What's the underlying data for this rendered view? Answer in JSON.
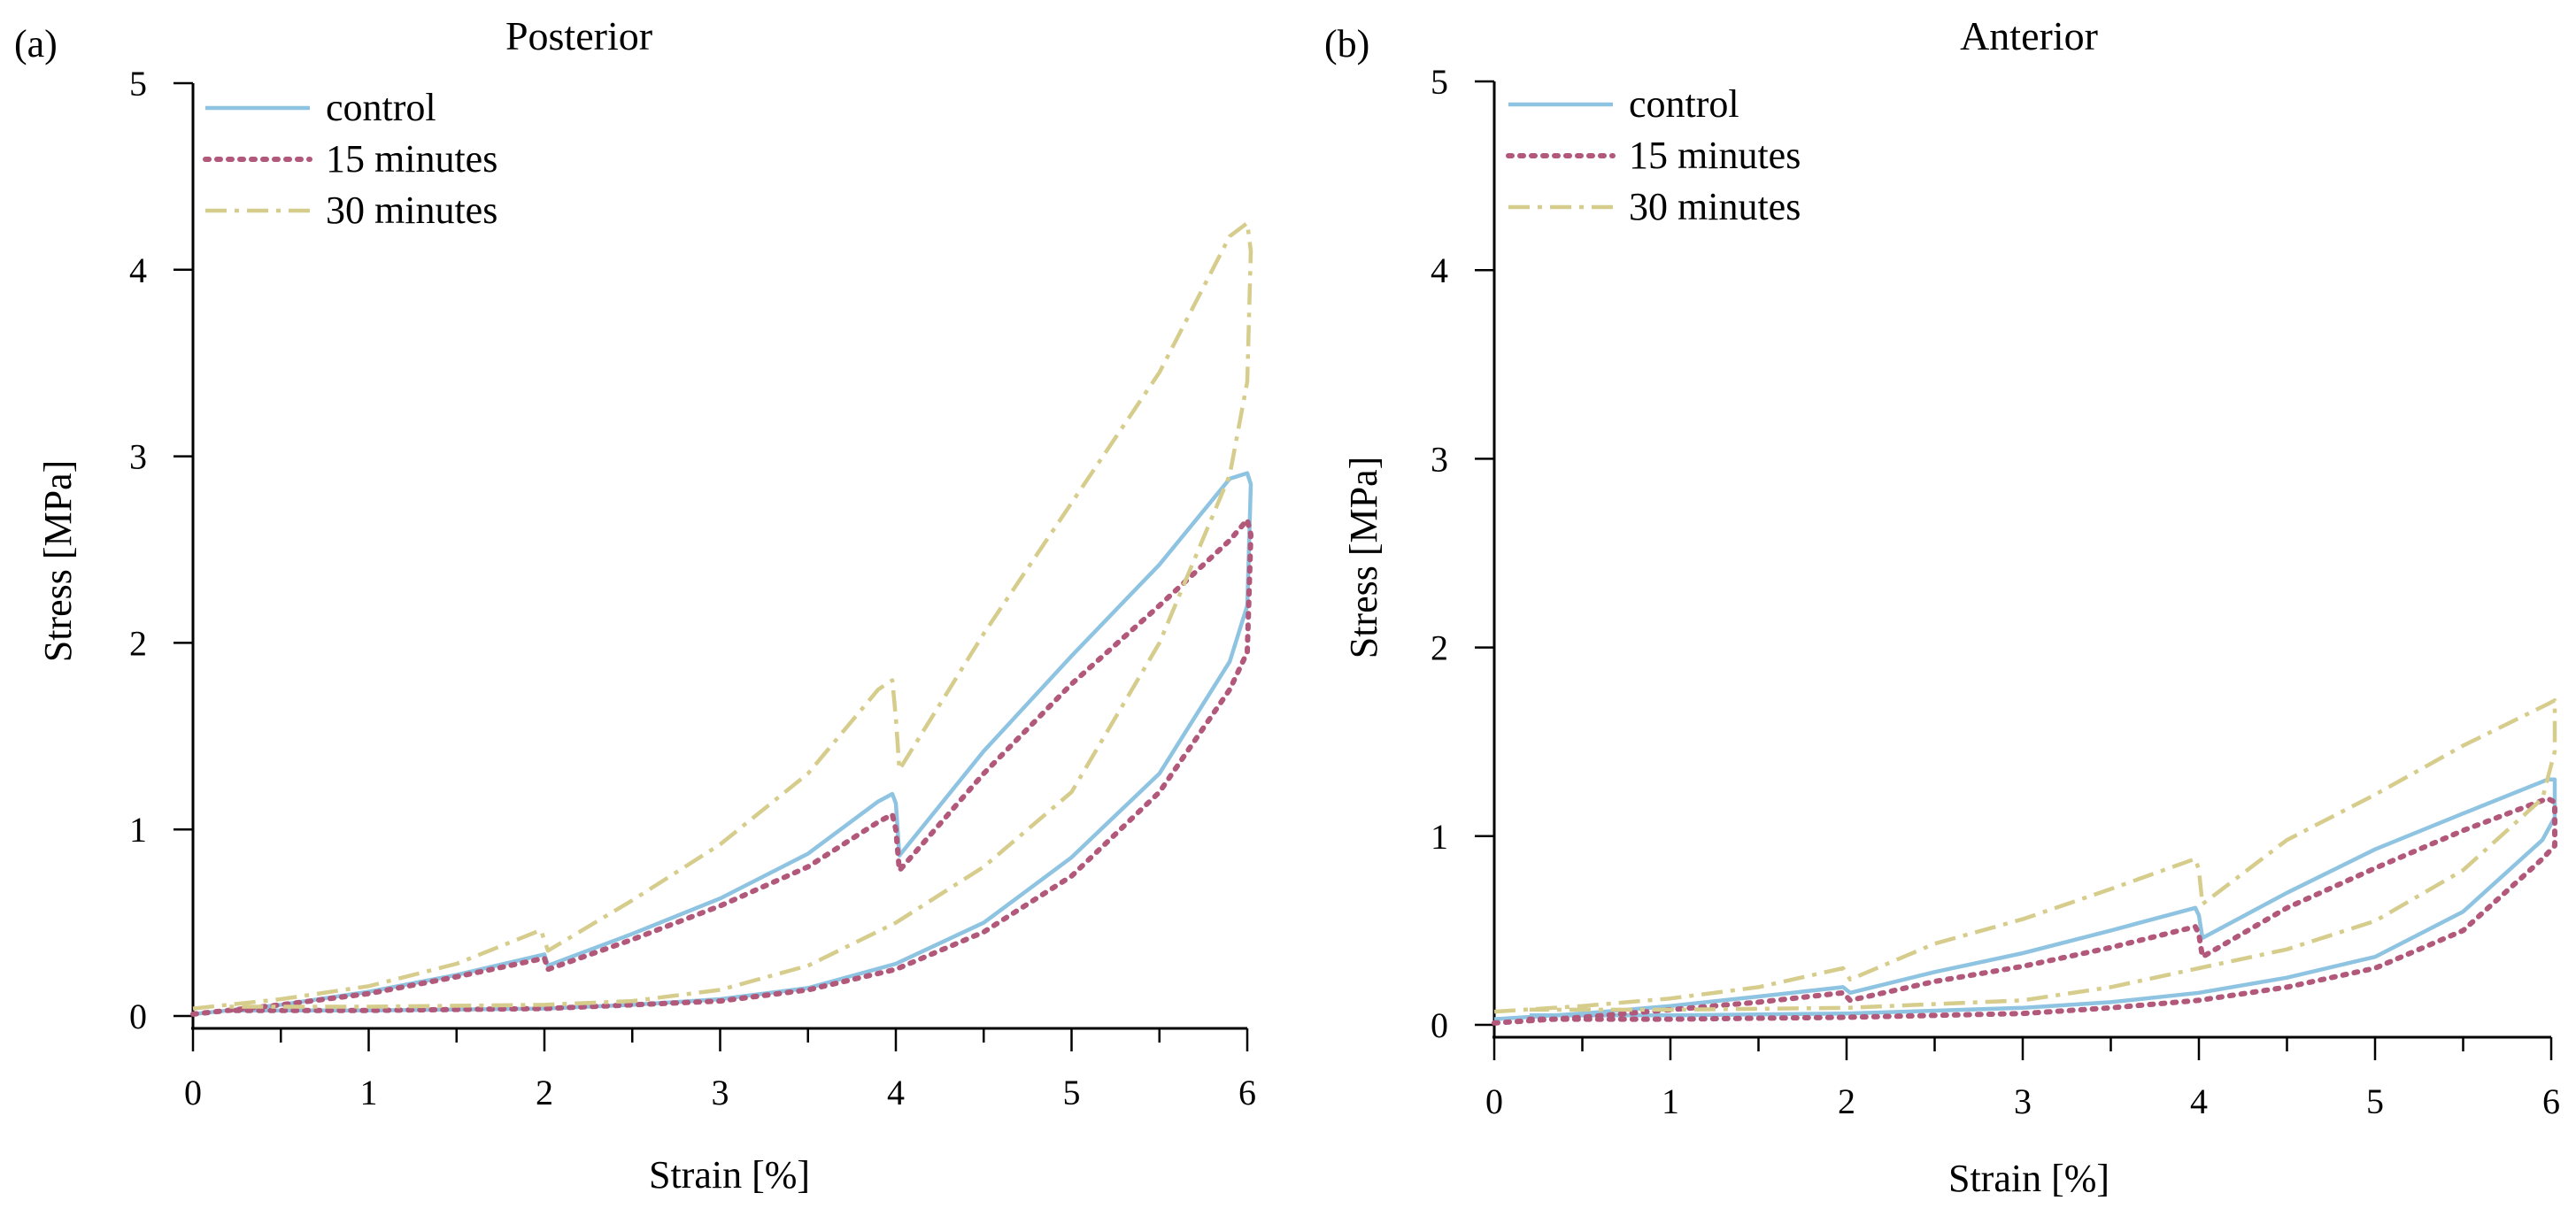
{
  "figure": {
    "panels": [
      "(a)",
      "(b)"
    ]
  },
  "colors": {
    "control": "#8ec4e2",
    "15 minutes": "#b2587a",
    "30 minutes": "#d6cc8c"
  },
  "chart_data": [
    {
      "type": "line",
      "panel_label": "(a)",
      "title": "Posterior",
      "xlabel": "Strain [%]",
      "ylabel": "Stress [MPa]",
      "xlim": [
        0,
        6
      ],
      "ylim": [
        0,
        5
      ],
      "xticks": [
        "0",
        "1",
        "2",
        "3",
        "4",
        "5",
        "6"
      ],
      "yticks": [
        "0",
        "1",
        "2",
        "3",
        "4",
        "5"
      ],
      "legend": {
        "position": "top-left",
        "entries": [
          "control",
          "15 minutes",
          "30 minutes"
        ]
      },
      "series": [
        {
          "name": "control",
          "style": "solid",
          "points": [
            [
              0,
              0.01
            ],
            [
              0.5,
              0.06
            ],
            [
              1,
              0.13
            ],
            [
              1.5,
              0.22
            ],
            [
              2,
              0.33
            ],
            [
              2.02,
              0.27
            ],
            [
              2.5,
              0.44
            ],
            [
              3,
              0.63
            ],
            [
              3.5,
              0.87
            ],
            [
              3.9,
              1.15
            ],
            [
              3.98,
              1.19
            ],
            [
              4.0,
              1.14
            ],
            [
              4.02,
              0.86
            ],
            [
              4.5,
              1.42
            ],
            [
              5,
              1.93
            ],
            [
              5.5,
              2.42
            ],
            [
              5.9,
              2.88
            ],
            [
              6.0,
              2.91
            ],
            [
              6.02,
              2.85
            ],
            [
              6.0,
              2.2
            ],
            [
              5.9,
              1.9
            ],
            [
              5.5,
              1.3
            ],
            [
              5,
              0.85
            ],
            [
              4.5,
              0.5
            ],
            [
              4,
              0.28
            ],
            [
              3.5,
              0.15
            ],
            [
              3,
              0.09
            ],
            [
              2.5,
              0.06
            ],
            [
              2,
              0.04
            ],
            [
              1,
              0.03
            ],
            [
              0.2,
              0.03
            ]
          ]
        },
        {
          "name": "15 minutes",
          "style": "dotted",
          "points": [
            [
              0,
              0.01
            ],
            [
              0.5,
              0.06
            ],
            [
              1,
              0.12
            ],
            [
              1.5,
              0.21
            ],
            [
              2,
              0.31
            ],
            [
              2.02,
              0.25
            ],
            [
              2.5,
              0.41
            ],
            [
              3,
              0.59
            ],
            [
              3.5,
              0.8
            ],
            [
              3.9,
              1.04
            ],
            [
              3.98,
              1.08
            ],
            [
              4.0,
              1.0
            ],
            [
              4.02,
              0.78
            ],
            [
              4.5,
              1.3
            ],
            [
              5,
              1.78
            ],
            [
              5.5,
              2.2
            ],
            [
              5.9,
              2.55
            ],
            [
              6.0,
              2.66
            ],
            [
              6.02,
              2.58
            ],
            [
              6.0,
              1.95
            ],
            [
              5.9,
              1.75
            ],
            [
              5.5,
              1.2
            ],
            [
              5,
              0.75
            ],
            [
              4.5,
              0.45
            ],
            [
              4,
              0.25
            ],
            [
              3.5,
              0.14
            ],
            [
              3,
              0.08
            ],
            [
              2.5,
              0.06
            ],
            [
              2,
              0.04
            ],
            [
              1,
              0.03
            ],
            [
              0.2,
              0.03
            ]
          ]
        },
        {
          "name": "30 minutes",
          "style": "dashdot",
          "points": [
            [
              0,
              0.04
            ],
            [
              0.5,
              0.09
            ],
            [
              1,
              0.16
            ],
            [
              1.5,
              0.28
            ],
            [
              1.98,
              0.46
            ],
            [
              2.02,
              0.35
            ],
            [
              2.5,
              0.62
            ],
            [
              3,
              0.92
            ],
            [
              3.5,
              1.3
            ],
            [
              3.9,
              1.75
            ],
            [
              3.98,
              1.8
            ],
            [
              4.0,
              1.6
            ],
            [
              4.02,
              1.32
            ],
            [
              4.5,
              2.05
            ],
            [
              5,
              2.75
            ],
            [
              5.5,
              3.45
            ],
            [
              5.9,
              4.18
            ],
            [
              6.0,
              4.25
            ],
            [
              6.02,
              4.1
            ],
            [
              6.0,
              3.4
            ],
            [
              5.9,
              2.9
            ],
            [
              5.5,
              2.0
            ],
            [
              5,
              1.2
            ],
            [
              4.5,
              0.8
            ],
            [
              4,
              0.5
            ],
            [
              3.5,
              0.27
            ],
            [
              3,
              0.14
            ],
            [
              2.5,
              0.08
            ],
            [
              2,
              0.06
            ],
            [
              1,
              0.05
            ],
            [
              0.2,
              0.05
            ]
          ]
        }
      ]
    },
    {
      "type": "line",
      "panel_label": "(b)",
      "title": "Anterior",
      "xlabel": "Strain [%]",
      "ylabel": "Stress [MPa]",
      "xlim": [
        0,
        6
      ],
      "ylim": [
        0,
        5
      ],
      "xticks": [
        "0",
        "1",
        "2",
        "3",
        "4",
        "5",
        "6"
      ],
      "yticks": [
        "0",
        "1",
        "2",
        "3",
        "4",
        "5"
      ],
      "legend": {
        "position": "top-left",
        "entries": [
          "control",
          "15 minutes",
          "30 minutes"
        ]
      },
      "series": [
        {
          "name": "control",
          "style": "solid",
          "points": [
            [
              0,
              0.03
            ],
            [
              0.5,
              0.06
            ],
            [
              1,
              0.1
            ],
            [
              1.5,
              0.15
            ],
            [
              1.98,
              0.2
            ],
            [
              2.02,
              0.17
            ],
            [
              2.5,
              0.28
            ],
            [
              3,
              0.38
            ],
            [
              3.5,
              0.5
            ],
            [
              3.98,
              0.62
            ],
            [
              4.0,
              0.58
            ],
            [
              4.02,
              0.46
            ],
            [
              4.5,
              0.7
            ],
            [
              5,
              0.93
            ],
            [
              5.5,
              1.12
            ],
            [
              5.98,
              1.3
            ],
            [
              6.02,
              1.3
            ],
            [
              6.02,
              1.1
            ],
            [
              5.95,
              0.98
            ],
            [
              5.5,
              0.6
            ],
            [
              5,
              0.36
            ],
            [
              4.5,
              0.25
            ],
            [
              4,
              0.17
            ],
            [
              3.5,
              0.12
            ],
            [
              3,
              0.09
            ],
            [
              2,
              0.06
            ],
            [
              1,
              0.05
            ],
            [
              0.2,
              0.05
            ]
          ]
        },
        {
          "name": "15 minutes",
          "style": "dotted",
          "points": [
            [
              0,
              0.01
            ],
            [
              0.5,
              0.04
            ],
            [
              1,
              0.08
            ],
            [
              1.5,
              0.12
            ],
            [
              1.98,
              0.17
            ],
            [
              2.02,
              0.13
            ],
            [
              2.5,
              0.23
            ],
            [
              3,
              0.31
            ],
            [
              3.5,
              0.41
            ],
            [
              3.98,
              0.52
            ],
            [
              4.0,
              0.48
            ],
            [
              4.02,
              0.36
            ],
            [
              4.5,
              0.62
            ],
            [
              5,
              0.83
            ],
            [
              5.5,
              1.03
            ],
            [
              5.98,
              1.2
            ],
            [
              6.02,
              1.18
            ],
            [
              6.02,
              0.95
            ],
            [
              5.95,
              0.88
            ],
            [
              5.5,
              0.5
            ],
            [
              5,
              0.3
            ],
            [
              4.5,
              0.2
            ],
            [
              4,
              0.13
            ],
            [
              3.5,
              0.09
            ],
            [
              3,
              0.06
            ],
            [
              2,
              0.04
            ],
            [
              1,
              0.03
            ],
            [
              0.2,
              0.03
            ]
          ]
        },
        {
          "name": "30 minutes",
          "style": "dashdot",
          "points": [
            [
              0,
              0.07
            ],
            [
              0.5,
              0.1
            ],
            [
              1,
              0.14
            ],
            [
              1.5,
              0.2
            ],
            [
              1.98,
              0.3
            ],
            [
              2.02,
              0.24
            ],
            [
              2.5,
              0.43
            ],
            [
              3,
              0.56
            ],
            [
              3.5,
              0.72
            ],
            [
              3.98,
              0.88
            ],
            [
              4.0,
              0.82
            ],
            [
              4.02,
              0.64
            ],
            [
              4.5,
              0.98
            ],
            [
              5,
              1.22
            ],
            [
              5.5,
              1.48
            ],
            [
              5.98,
              1.7
            ],
            [
              6.02,
              1.72
            ],
            [
              6.02,
              1.45
            ],
            [
              5.95,
              1.2
            ],
            [
              5.5,
              0.82
            ],
            [
              5,
              0.55
            ],
            [
              4.5,
              0.4
            ],
            [
              4,
              0.3
            ],
            [
              3.5,
              0.2
            ],
            [
              3,
              0.13
            ],
            [
              2,
              0.09
            ],
            [
              1,
              0.08
            ],
            [
              0.2,
              0.08
            ]
          ]
        }
      ]
    }
  ]
}
